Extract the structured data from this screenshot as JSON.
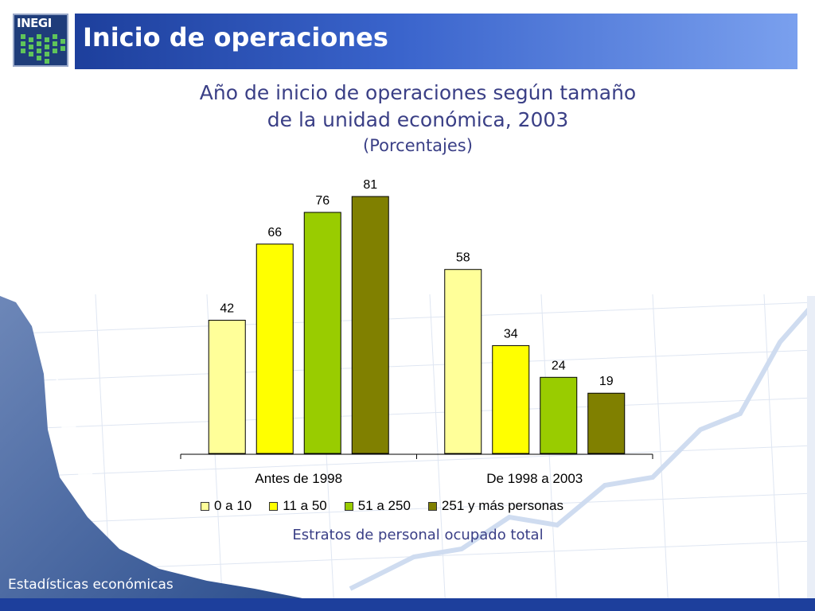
{
  "header": {
    "logo_text": "INEGI",
    "title": "Inicio de operaciones"
  },
  "chart_titles": {
    "line1": "Año de inicio de operaciones según tamaño",
    "line2": "de la unidad económica, 2003",
    "subtitle": "(Porcentajes)"
  },
  "chart_data": {
    "type": "bar",
    "categories": [
      "Antes de 1998",
      "De 1998 a 2003"
    ],
    "series": [
      {
        "name": "0 a 10",
        "values": [
          42,
          58
        ],
        "color": "#ffff99"
      },
      {
        "name": "11 a 50",
        "values": [
          66,
          34
        ],
        "color": "#ffff00"
      },
      {
        "name": "51 a 250",
        "values": [
          76,
          24
        ],
        "color": "#99cc00"
      },
      {
        "name": "251 y más personas",
        "values": [
          81,
          19
        ],
        "color": "#808000"
      }
    ],
    "ylim": [
      0,
      81
    ],
    "grid": false,
    "legend": "bottom",
    "xlabel": "Estratos de personal ocupado total"
  },
  "footer": {
    "label": "Estadísticas económicas"
  },
  "colors": {
    "title_bar_start": "#1d3f9c",
    "title_bar_end": "#7aa0ee",
    "title_text": "#3a3f86",
    "footer_bar": "#1d3f9c"
  }
}
